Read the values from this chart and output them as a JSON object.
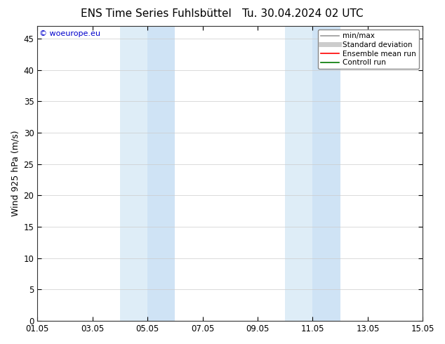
{
  "title": "ENS Time Series Fuhlsbüttel",
  "title_right": "Tu. 30.04.2024 02 UTC",
  "ylabel": "Wind 925 hPa (m/s)",
  "watermark": "© woeurope.eu",
  "watermark_color": "#0000cc",
  "ylim": [
    0,
    47
  ],
  "yticks": [
    0,
    5,
    10,
    15,
    20,
    25,
    30,
    35,
    40,
    45
  ],
  "xlim": [
    0,
    14
  ],
  "xtick_labels": [
    "01.05",
    "03.05",
    "05.05",
    "07.05",
    "09.05",
    "11.05",
    "13.05",
    "15.05"
  ],
  "xtick_positions": [
    0,
    2,
    4,
    6,
    8,
    10,
    12,
    14
  ],
  "shaded_regions": [
    {
      "start": 3.0,
      "end": 4.0,
      "color": "#deedf7"
    },
    {
      "start": 4.0,
      "end": 5.0,
      "color": "#cfe3f5"
    },
    {
      "start": 9.0,
      "end": 10.0,
      "color": "#deedf7"
    },
    {
      "start": 10.0,
      "end": 11.0,
      "color": "#cfe3f5"
    }
  ],
  "bg_color": "#ffffff",
  "plot_bg_color": "#ffffff",
  "legend_items": [
    {
      "label": "min/max",
      "color": "#999999",
      "lw": 1.2,
      "style": "solid"
    },
    {
      "label": "Standard deviation",
      "color": "#cccccc",
      "lw": 5,
      "style": "solid"
    },
    {
      "label": "Ensemble mean run",
      "color": "#ff0000",
      "lw": 1.2,
      "style": "solid"
    },
    {
      "label": "Controll run",
      "color": "#007700",
      "lw": 1.2,
      "style": "solid"
    }
  ],
  "title_fontsize": 11,
  "axis_fontsize": 9,
  "tick_fontsize": 8.5,
  "legend_fontsize": 7.5
}
